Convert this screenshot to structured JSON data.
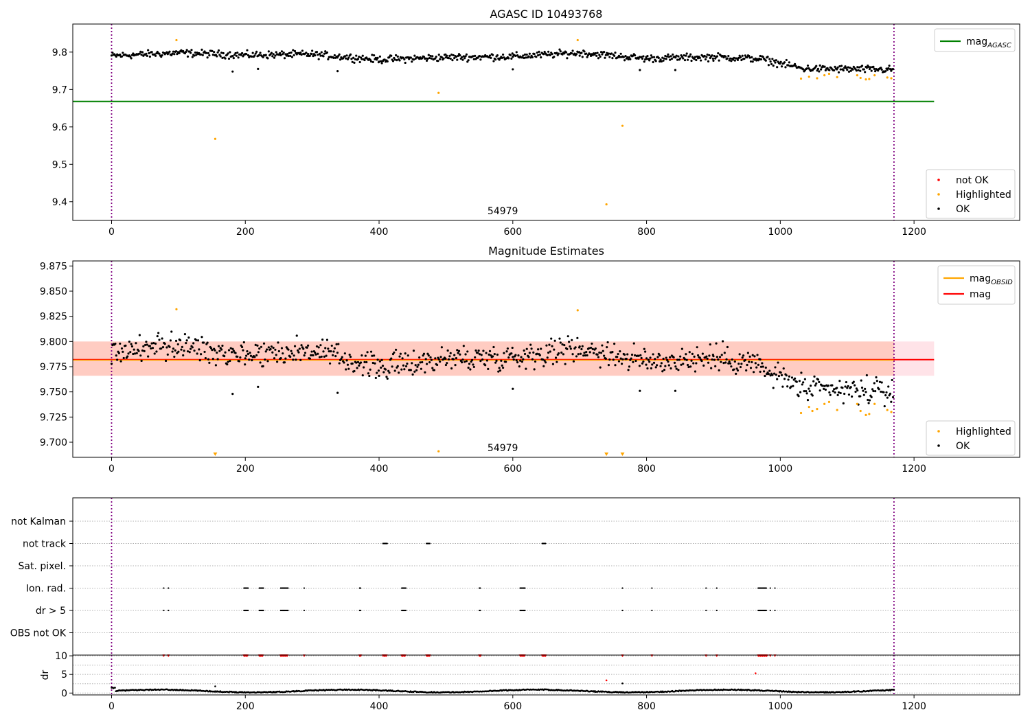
{
  "figure": {
    "width": 1500,
    "height": 1050
  },
  "colors": {
    "ok": "#000000",
    "highlighted": "#ffa500",
    "not_ok": "#ff0000",
    "agasc_line": "#008000",
    "mag_line": "#ff0000",
    "band_fill": "#ffa07a",
    "band_outer": "#ffc0cb",
    "obsid_line": "#ffa500",
    "vline": "#800080"
  },
  "chart_data": [
    {
      "type": "scatter",
      "title": "AGASC ID 10493768",
      "xlim": [
        -58,
        1358
      ],
      "ylim": [
        9.35,
        9.875
      ],
      "xticks": [
        0,
        200,
        400,
        600,
        800,
        1000,
        1200
      ],
      "yticks": [
        9.4,
        9.5,
        9.6,
        9.7,
        9.8
      ],
      "ytick_labels": [
        "9.4",
        "9.5",
        "9.6",
        "9.7",
        "9.8"
      ],
      "vlines": [
        0,
        1170
      ],
      "hlines": [
        {
          "y": 9.668,
          "x_end": 1230,
          "label": "mag_AGASC",
          "color": "#008000"
        }
      ],
      "obsid_label": {
        "text": "54979",
        "x": 585
      },
      "legend_lines": [
        {
          "label": "mag",
          "sub": "AGASC",
          "color": "#008000"
        }
      ],
      "legend_points": [
        {
          "label": "not OK",
          "color": "#ff0000"
        },
        {
          "label": "Highlighted",
          "color": "#ffa500"
        },
        {
          "label": "OK",
          "color": "#000000"
        }
      ],
      "series": [
        {
          "name": "Highlighted",
          "color": "#ffa500",
          "points": [
            [
              97,
              9.832
            ],
            [
              155,
              9.568
            ],
            [
              489,
              9.691
            ],
            [
              697,
              9.832
            ],
            [
              740,
              9.393
            ],
            [
              764,
              9.603
            ],
            [
              1031,
              9.729
            ],
            [
              1043,
              9.734
            ],
            [
              1055,
              9.73
            ],
            [
              1066,
              9.738
            ],
            [
              1073,
              9.742
            ],
            [
              1085,
              9.733
            ],
            [
              1115,
              9.738
            ],
            [
              1120,
              9.731
            ],
            [
              1128,
              9.727
            ],
            [
              1133,
              9.728
            ],
            [
              1141,
              9.738
            ],
            [
              1160,
              9.732
            ],
            [
              1166,
              9.73
            ]
          ]
        },
        {
          "name": "OK",
          "color": "#000000",
          "ranges": [
            {
              "x": [
                0,
                100
              ],
              "mid": [
                9.79,
                9.798
              ]
            },
            {
              "x": [
                100,
                200
              ],
              "mid": [
                9.798,
                9.792
              ]
            },
            {
              "x": [
                200,
                300
              ],
              "mid": [
                9.792,
                9.794
              ]
            },
            {
              "x": [
                300,
                400
              ],
              "mid": [
                9.794,
                9.78
              ]
            },
            {
              "x": [
                400,
                500
              ],
              "mid": [
                9.78,
                9.786
              ]
            },
            {
              "x": [
                500,
                600
              ],
              "mid": [
                9.786,
                9.788
              ]
            },
            {
              "x": [
                600,
                700
              ],
              "mid": [
                9.788,
                9.798
              ]
            },
            {
              "x": [
                700,
                800
              ],
              "mid": [
                9.798,
                9.783
              ]
            },
            {
              "x": [
                800,
                900
              ],
              "mid": [
                9.783,
                9.787
              ]
            },
            {
              "x": [
                900,
                970
              ],
              "mid": [
                9.787,
                9.782
              ]
            },
            {
              "x": [
                970,
                1030
              ],
              "mid": [
                9.782,
                9.758
              ]
            },
            {
              "x": [
                1030,
                1170
              ],
              "mid": [
                9.756,
                9.753
              ]
            }
          ],
          "noise": 0.009,
          "outliers": [
            [
              181,
              9.748
            ],
            [
              219,
              9.755
            ],
            [
              338,
              9.749
            ],
            [
              600,
              9.754
            ],
            [
              790,
              9.752
            ],
            [
              843,
              9.752
            ]
          ]
        }
      ]
    },
    {
      "type": "scatter",
      "title": "Magnitude Estimates",
      "xlim": [
        -58,
        1358
      ],
      "ylim": [
        9.685,
        9.88
      ],
      "xticks": [
        0,
        200,
        400,
        600,
        800,
        1000,
        1200
      ],
      "yticks": [
        9.7,
        9.725,
        9.75,
        9.775,
        9.8,
        9.825,
        9.85,
        9.875
      ],
      "ytick_labels": [
        "9.700",
        "9.725",
        "9.750",
        "9.775",
        "9.800",
        "9.825",
        "9.850",
        "9.875"
      ],
      "vlines": [
        0,
        1170
      ],
      "band_outer": {
        "y": [
          9.766,
          9.8
        ],
        "x_end": 1230
      },
      "band": {
        "y": [
          9.766,
          9.8
        ],
        "x_end": 1170
      },
      "hlines": [
        {
          "y": 9.782,
          "x_end": 1230,
          "label": "mag",
          "color": "#ff0000"
        },
        {
          "y": 9.7815,
          "x_end": 1170,
          "label": "mag_OBSID",
          "color": "#ffa500"
        }
      ],
      "obsid_label": {
        "text": "54979",
        "x": 585
      },
      "legend_lines": [
        {
          "label": "mag",
          "sub": "OBSID",
          "color": "#ffa500"
        },
        {
          "label": "mag",
          "sub": "",
          "color": "#ff0000"
        }
      ],
      "legend_points": [
        {
          "label": "Highlighted",
          "color": "#ffa500"
        },
        {
          "label": "OK",
          "color": "#000000"
        }
      ],
      "series": [
        {
          "name": "Highlighted",
          "color": "#ffa500",
          "points": [
            [
              97,
              9.832
            ],
            [
              489,
              9.691
            ],
            [
              697,
              9.831
            ],
            [
              1031,
              9.729
            ],
            [
              1043,
              9.735
            ],
            [
              1048,
              9.731
            ],
            [
              1055,
              9.733
            ],
            [
              1066,
              9.738
            ],
            [
              1073,
              9.74
            ],
            [
              1085,
              9.732
            ],
            [
              1115,
              9.738
            ],
            [
              1120,
              9.731
            ],
            [
              1128,
              9.727
            ],
            [
              1133,
              9.728
            ],
            [
              1141,
              9.738
            ],
            [
              1160,
              9.732
            ],
            [
              1166,
              9.73
            ]
          ],
          "lower_limits": [
            155,
            740,
            764
          ]
        },
        {
          "name": "OK",
          "color": "#000000",
          "ranges": [
            {
              "x": [
                0,
                100
              ],
              "mid": [
                9.79,
                9.796
              ]
            },
            {
              "x": [
                100,
                200
              ],
              "mid": [
                9.796,
                9.788
              ]
            },
            {
              "x": [
                200,
                300
              ],
              "mid": [
                9.788,
                9.791
              ]
            },
            {
              "x": [
                300,
                400
              ],
              "mid": [
                9.791,
                9.774
              ]
            },
            {
              "x": [
                400,
                500
              ],
              "mid": [
                9.774,
                9.783
              ]
            },
            {
              "x": [
                500,
                600
              ],
              "mid": [
                9.783,
                9.785
              ]
            },
            {
              "x": [
                600,
                700
              ],
              "mid": [
                9.785,
                9.794
              ]
            },
            {
              "x": [
                700,
                800
              ],
              "mid": [
                9.794,
                9.78
              ]
            },
            {
              "x": [
                800,
                900
              ],
              "mid": [
                9.78,
                9.784
              ]
            },
            {
              "x": [
                900,
                970
              ],
              "mid": [
                9.784,
                9.778
              ]
            },
            {
              "x": [
                970,
                1030
              ],
              "mid": [
                9.772,
                9.757
              ]
            },
            {
              "x": [
                1030,
                1170
              ],
              "mid": [
                9.752,
                9.75
              ]
            }
          ],
          "noise": 0.012,
          "outliers": [
            [
              181,
              9.748
            ],
            [
              219,
              9.755
            ],
            [
              338,
              9.749
            ],
            [
              600,
              9.753
            ],
            [
              790,
              9.751
            ],
            [
              843,
              9.751
            ]
          ]
        }
      ]
    },
    {
      "type": "scatter",
      "title": "",
      "xlim": [
        -58,
        1358
      ],
      "categories": [
        "not Kalman",
        "not track",
        "Sat. pixel.",
        "Ion. rad.",
        "dr > 5",
        "OBS not OK"
      ],
      "category_points": {
        "not track": [
          [
            406,
            412
          ],
          [
            471,
            476
          ],
          [
            644,
            650
          ]
        ],
        "Ion. rad.": [
          [
            78,
            79
          ],
          [
            85,
            86
          ],
          [
            198,
            204
          ],
          [
            221,
            227
          ],
          [
            253,
            264
          ],
          [
            288,
            289
          ],
          [
            371,
            373
          ],
          [
            434,
            440
          ],
          [
            550,
            552
          ],
          [
            611,
            619
          ],
          [
            764,
            765
          ],
          [
            808,
            809
          ],
          [
            889,
            890
          ],
          [
            905,
            906
          ],
          [
            967,
            980
          ],
          [
            985,
            986
          ],
          [
            992,
            993
          ]
        ],
        "dr > 5": [
          [
            78,
            79
          ],
          [
            85,
            86
          ],
          [
            198,
            204
          ],
          [
            221,
            227
          ],
          [
            253,
            264
          ],
          [
            288,
            289
          ],
          [
            371,
            373
          ],
          [
            434,
            440
          ],
          [
            550,
            552
          ],
          [
            611,
            619
          ],
          [
            764,
            765
          ],
          [
            808,
            809
          ],
          [
            889,
            890
          ],
          [
            905,
            906
          ],
          [
            967,
            980
          ],
          [
            985,
            986
          ],
          [
            992,
            993
          ]
        ]
      },
      "dr": {
        "ylabel": "dr",
        "ylim": [
          -0.5,
          10.2
        ],
        "yticks": [
          0,
          5,
          10
        ],
        "ytick_labels": [
          "0",
          "5",
          "10"
        ],
        "clip_value": 10,
        "clipped_x": [
          [
            78,
            79
          ],
          [
            85,
            86
          ],
          [
            198,
            204
          ],
          [
            221,
            227
          ],
          [
            253,
            264
          ],
          [
            288,
            289
          ],
          [
            371,
            373
          ],
          [
            406,
            412
          ],
          [
            434,
            440
          ],
          [
            471,
            476
          ],
          [
            550,
            552
          ],
          [
            611,
            619
          ],
          [
            644,
            650
          ],
          [
            764,
            765
          ],
          [
            808,
            809
          ],
          [
            889,
            890
          ],
          [
            905,
            906
          ],
          [
            967,
            980
          ],
          [
            985,
            986
          ],
          [
            992,
            993
          ]
        ],
        "outliers": [
          [
            155,
            1.8
          ],
          [
            740,
            3.4
          ],
          [
            764,
            2.6
          ],
          [
            963,
            5.3
          ]
        ],
        "baseline": {
          "x": [
            0,
            1170
          ],
          "level": 0.55,
          "amplitude": 0.35
        }
      }
    }
  ]
}
